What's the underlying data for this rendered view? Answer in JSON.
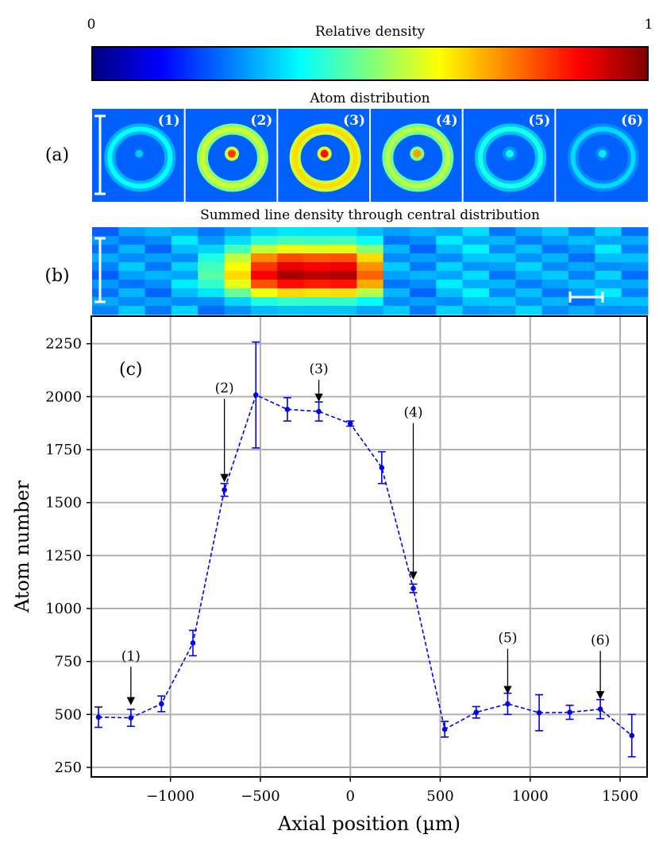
{
  "colorbar": {
    "title": "Relative density",
    "min_label": "0",
    "max_label": "1",
    "colormap": "jet",
    "stops": [
      "#00007f",
      "#0000ff",
      "#007fff",
      "#00ffff",
      "#7fff7f",
      "#ffff00",
      "#ff7f00",
      "#ff0000",
      "#7f0000"
    ]
  },
  "panel_a": {
    "tag": "(a)",
    "title": "Atom distribution",
    "frame_labels": [
      "(1)",
      "(2)",
      "(3)",
      "(4)",
      "(5)",
      "(6)"
    ],
    "ring_intensity": [
      0.38,
      0.58,
      0.66,
      0.56,
      0.4,
      0.34
    ],
    "core_intensity": [
      0.32,
      0.82,
      0.86,
      0.72,
      0.38,
      0.36
    ]
  },
  "panel_b": {
    "tag": "(b)",
    "title": "Summed line density through central distribution",
    "row_profile": [
      0.22,
      0.34,
      0.55,
      0.8,
      0.92,
      1.0,
      0.88,
      0.62,
      0.32,
      0.18
    ],
    "column_levels": [
      0.27,
      0.3,
      0.28,
      0.33,
      0.46,
      0.66,
      0.88,
      0.96,
      0.94,
      0.95,
      0.78,
      0.3,
      0.28,
      0.33,
      0.34,
      0.3,
      0.31,
      0.3,
      0.29,
      0.33,
      0.29
    ]
  },
  "chart_data": {
    "type": "line",
    "panel_tag": "(c)",
    "xlabel": "Axial position (µm)",
    "ylabel": "Atom number",
    "xlim": [
      -1440,
      1650
    ],
    "ylim": [
      205,
      2380
    ],
    "xticks": [
      -1000,
      -500,
      0,
      500,
      1000,
      1500
    ],
    "xtick_labels": [
      "−1000",
      "−500",
      "0",
      "500",
      "1000",
      "1500"
    ],
    "yticks": [
      250,
      500,
      750,
      1000,
      1250,
      1500,
      1750,
      2000,
      2250
    ],
    "ytick_labels": [
      "250",
      "500",
      "750",
      "1000",
      "1250",
      "1500",
      "1750",
      "2000",
      "2250"
    ],
    "grid": true,
    "series": [
      {
        "name": "Atom number",
        "color": "#0000ee",
        "linestyle": "dashed",
        "x": [
          -1400,
          -1220,
          -1050,
          -875,
          -700,
          -525,
          -350,
          -175,
          0,
          175,
          350,
          525,
          700,
          875,
          1050,
          1220,
          1390,
          1565
        ],
        "y": [
          487,
          484,
          550,
          837,
          1560,
          2008,
          1940,
          1930,
          1873,
          1665,
          1095,
          430,
          510,
          550,
          508,
          510,
          525,
          400
        ],
        "yerr": [
          48,
          40,
          37,
          60,
          30,
          250,
          55,
          45,
          12,
          75,
          20,
          37,
          27,
          50,
          85,
          33,
          45,
          100
        ]
      }
    ],
    "annotations": [
      {
        "label": "(1)",
        "x": -1220,
        "y_text": 755,
        "y_tip": 547
      },
      {
        "label": "(2)",
        "x": -700,
        "y_text": 2020,
        "y_tip": 1600
      },
      {
        "label": "(3)",
        "x": -175,
        "y_text": 2110,
        "y_tip": 1980
      },
      {
        "label": "(4)",
        "x": 350,
        "y_text": 1905,
        "y_tip": 1140
      },
      {
        "label": "(5)",
        "x": 875,
        "y_text": 840,
        "y_tip": 600
      },
      {
        "label": "(6)",
        "x": 1390,
        "y_text": 830,
        "y_tip": 575
      }
    ]
  }
}
